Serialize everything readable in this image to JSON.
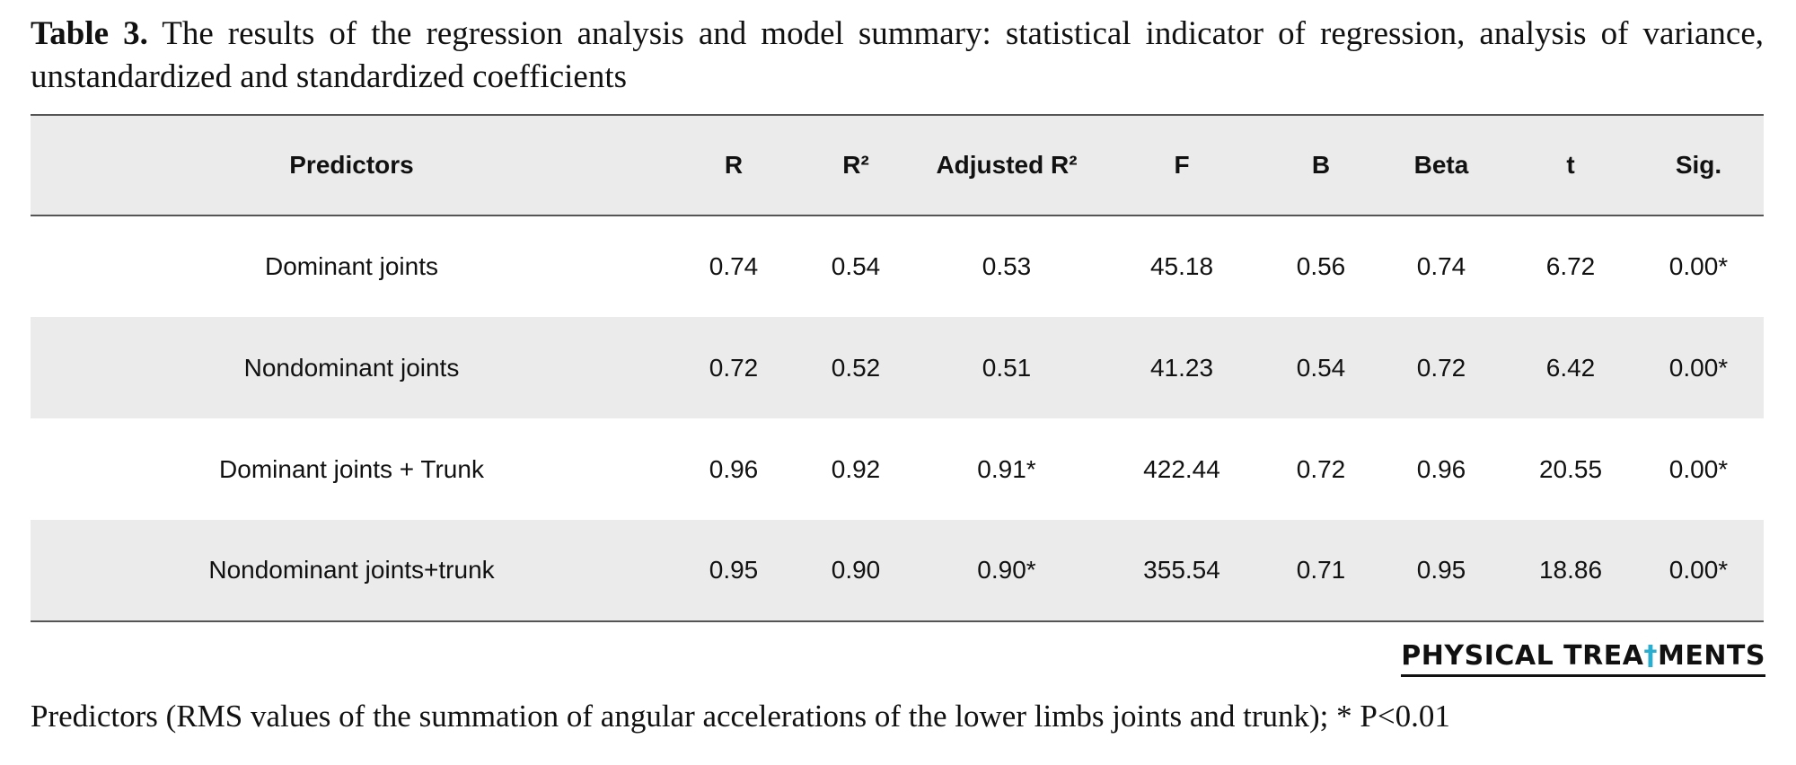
{
  "caption": {
    "label": "Table 3.",
    "text": "The results of the regression analysis and model summary: statistical indicator of regression, analysis of variance, unstandardized and standardized coefficients"
  },
  "table": {
    "headers": [
      "Predictors",
      "R",
      "R²",
      "Adjusted R²",
      "F",
      "B",
      "Beta",
      "t",
      "Sig."
    ],
    "rows": [
      [
        "Dominant joints",
        "0.74",
        "0.54",
        "0.53",
        "45.18",
        "0.56",
        "0.74",
        "6.72",
        "0.00*"
      ],
      [
        "Nondominant joints",
        "0.72",
        "0.52",
        "0.51",
        "41.23",
        "0.54",
        "0.72",
        "6.42",
        "0.00*"
      ],
      [
        "Dominant joints + Trunk",
        "0.96",
        "0.92",
        "0.91*",
        "422.44",
        "0.72",
        "0.96",
        "20.55",
        "0.00*"
      ],
      [
        "Nondominant joints+trunk",
        "0.95",
        "0.90",
        "0.90*",
        "355.54",
        "0.71",
        "0.95",
        "18.86",
        "0.00*"
      ]
    ]
  },
  "logo": {
    "before": "PHYSICAL TREA",
    "glyph": "†",
    "after": "MENTS"
  },
  "footnote": "Predictors (RMS values of the summation of angular accelerations of the lower limbs joints and trunk); * P<0.01"
}
